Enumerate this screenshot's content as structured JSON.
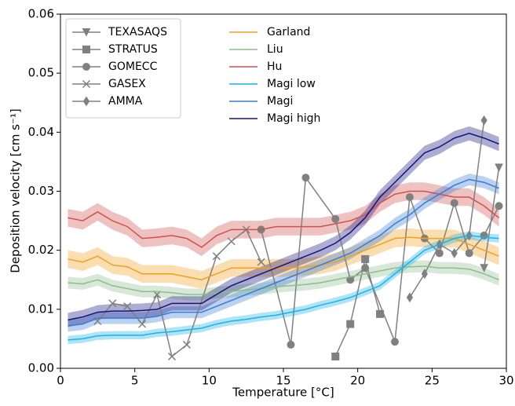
{
  "chart_data": {
    "type": "line",
    "xlabel": "Temperature [°C]",
    "ylabel": "Deposition velocity [cm s⁻¹]",
    "xlim": [
      0,
      30
    ],
    "ylim": [
      0,
      0.06
    ],
    "xticks": [
      0,
      5,
      10,
      15,
      20,
      25,
      30
    ],
    "yticks": [
      {
        "value": 0,
        "label": "0.00"
      },
      {
        "value": 0.01,
        "label": "0.01"
      },
      {
        "value": 0.02,
        "label": "0.02"
      },
      {
        "value": 0.03,
        "label": "0.03"
      },
      {
        "value": 0.04,
        "label": "0.04"
      },
      {
        "value": 0.05,
        "label": "0.05"
      },
      {
        "value": 0.06,
        "label": "0.06"
      }
    ],
    "x": [
      0.5,
      1.5,
      2.5,
      3.5,
      4.5,
      5.5,
      6.5,
      7.5,
      8.5,
      9.5,
      10.5,
      11.5,
      12.5,
      13.5,
      14.5,
      15.5,
      16.5,
      17.5,
      18.5,
      19.5,
      20.5,
      21.5,
      22.5,
      23.5,
      24.5,
      25.5,
      26.5,
      27.5,
      28.5,
      29.5
    ],
    "observations": [
      {
        "name": "TEXASAQS",
        "color": "#808080",
        "marker": "triangle_down",
        "x": [
          28.5,
          29.5
        ],
        "values": [
          0.017,
          0.034
        ]
      },
      {
        "name": "STRATUS",
        "color": "#808080",
        "marker": "square",
        "x": [
          18.5,
          19.5,
          20.5,
          21.5
        ],
        "values": [
          0.002,
          0.0075,
          0.0185,
          0.0092
        ]
      },
      {
        "name": "GOMECC",
        "color": "#808080",
        "marker": "circle",
        "x": [
          13.5,
          15.5,
          16.5,
          18.5,
          19.5,
          20.5,
          22.5,
          23.5,
          24.5,
          25.5,
          26.5,
          27.5,
          28.5,
          29.5
        ],
        "values": [
          0.0235,
          0.004,
          0.0323,
          0.0253,
          0.015,
          0.017,
          0.0045,
          0.029,
          0.022,
          0.0195,
          0.028,
          0.0195,
          0.0225,
          0.0275
        ]
      },
      {
        "name": "GASEX",
        "color": "#808080",
        "marker": "x",
        "x": [
          2.5,
          3.5,
          4.5,
          5.5,
          6.5,
          7.5,
          8.5,
          10.5,
          11.5,
          12.5,
          13.5
        ],
        "values": [
          0.008,
          0.011,
          0.0105,
          0.0075,
          0.0125,
          0.002,
          0.004,
          0.019,
          0.0215,
          0.0235,
          0.018
        ]
      },
      {
        "name": "AMMA",
        "color": "#808080",
        "marker": "diamond",
        "x": [
          23.5,
          24.5,
          25.5,
          26.5,
          27.5,
          28.5
        ],
        "values": [
          0.012,
          0.016,
          0.021,
          0.0195,
          0.0225,
          0.042
        ]
      }
    ],
    "series": [
      {
        "name": "Garland",
        "color": "#f0a020",
        "band": 0.0015,
        "values": [
          0.0185,
          0.018,
          0.019,
          0.0175,
          0.0172,
          0.016,
          0.016,
          0.016,
          0.0155,
          0.015,
          0.016,
          0.017,
          0.017,
          0.017,
          0.017,
          0.017,
          0.0172,
          0.0175,
          0.018,
          0.019,
          0.02,
          0.021,
          0.022,
          0.0222,
          0.022,
          0.022,
          0.022,
          0.021,
          0.02,
          0.019
        ]
      },
      {
        "name": "Liu",
        "color": "#8fbc8f",
        "band": 0.001,
        "values": [
          0.0145,
          0.0143,
          0.015,
          0.014,
          0.0135,
          0.013,
          0.013,
          0.0128,
          0.0125,
          0.0125,
          0.0128,
          0.013,
          0.0133,
          0.0135,
          0.0138,
          0.014,
          0.0142,
          0.0145,
          0.015,
          0.0155,
          0.016,
          0.0165,
          0.017,
          0.0172,
          0.0173,
          0.017,
          0.017,
          0.0168,
          0.016,
          0.015
        ]
      },
      {
        "name": "Hu",
        "color": "#d05050",
        "band": 0.0015,
        "values": [
          0.0255,
          0.025,
          0.0265,
          0.025,
          0.024,
          0.022,
          0.0222,
          0.0225,
          0.022,
          0.0205,
          0.0225,
          0.0235,
          0.0235,
          0.0235,
          0.024,
          0.024,
          0.024,
          0.024,
          0.0245,
          0.025,
          0.026,
          0.028,
          0.0295,
          0.03,
          0.03,
          0.0295,
          0.029,
          0.029,
          0.0275,
          0.0255
        ]
      },
      {
        "name": "Magi low",
        "color": "#1ab2e8",
        "band": 0.0007,
        "values": [
          0.0048,
          0.005,
          0.0055,
          0.0056,
          0.0056,
          0.0056,
          0.006,
          0.0062,
          0.0065,
          0.0068,
          0.0075,
          0.008,
          0.0083,
          0.0087,
          0.009,
          0.0095,
          0.01,
          0.0107,
          0.0113,
          0.012,
          0.013,
          0.014,
          0.016,
          0.018,
          0.02,
          0.021,
          0.022,
          0.0225,
          0.0222,
          0.022
        ]
      },
      {
        "name": "Magi",
        "color": "#3a7bd5",
        "band": 0.001,
        "values": [
          0.0072,
          0.0075,
          0.0085,
          0.0085,
          0.0085,
          0.0085,
          0.0088,
          0.0095,
          0.0095,
          0.0095,
          0.0105,
          0.0115,
          0.0125,
          0.0135,
          0.0145,
          0.0155,
          0.0165,
          0.0175,
          0.0185,
          0.0195,
          0.021,
          0.0225,
          0.0245,
          0.026,
          0.028,
          0.0295,
          0.031,
          0.032,
          0.0315,
          0.0305
        ]
      },
      {
        "name": "Magi high",
        "color": "#14147e",
        "band": 0.0012,
        "values": [
          0.0082,
          0.0087,
          0.0095,
          0.0097,
          0.0097,
          0.0098,
          0.01,
          0.011,
          0.011,
          0.011,
          0.0125,
          0.014,
          0.015,
          0.016,
          0.017,
          0.018,
          0.019,
          0.02,
          0.0212,
          0.023,
          0.0255,
          0.029,
          0.0315,
          0.034,
          0.0365,
          0.0375,
          0.039,
          0.0398,
          0.039,
          0.038
        ]
      }
    ]
  }
}
